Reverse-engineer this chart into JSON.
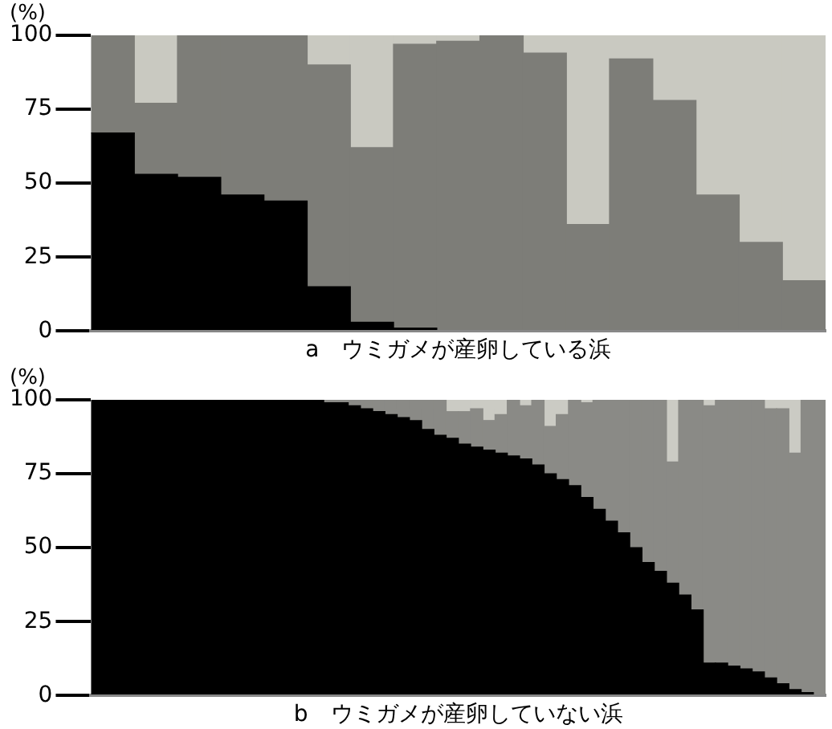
{
  "chart_data": [
    {
      "type": "bar",
      "stacked": true,
      "ylabel": "(%)",
      "xlabel": "a　ウミガメが産卵している浜",
      "legend": false,
      "grid": false,
      "tick_labels": "y",
      "ylim": [
        0,
        100
      ],
      "yticks": [
        0,
        25,
        50,
        75,
        100
      ],
      "categories": [
        null,
        null,
        null,
        null,
        null,
        null,
        null,
        null,
        null,
        null,
        null,
        null,
        null,
        null,
        null,
        null,
        null
      ],
      "series": [
        {
          "color": "#000000",
          "values": [
            67,
            53,
            52,
            46,
            44,
            15,
            3,
            1,
            0,
            0,
            0,
            0,
            0,
            0,
            0,
            0,
            0
          ]
        },
        {
          "color": "#7d7d78",
          "values": [
            33,
            24,
            48,
            54,
            56,
            75,
            59,
            96,
            98,
            100,
            94,
            36,
            92,
            78,
            46,
            30,
            17
          ]
        },
        {
          "color": "#c9c9c1",
          "values": [
            0,
            23,
            0,
            0,
            0,
            10,
            38,
            3,
            2,
            0,
            6,
            64,
            8,
            22,
            54,
            70,
            83
          ]
        }
      ]
    },
    {
      "type": "bar",
      "stacked": true,
      "ylabel": "(%)",
      "xlabel": "b　ウミガメが産卵していない浜",
      "legend": false,
      "grid": false,
      "tick_labels": "y",
      "ylim": [
        0,
        100
      ],
      "yticks": [
        0,
        25,
        50,
        75,
        100
      ],
      "categories": [
        null,
        null,
        null,
        null,
        null,
        null,
        null,
        null,
        null,
        null,
        null,
        null,
        null,
        null,
        null,
        null,
        null,
        null,
        null,
        null,
        null,
        null,
        null,
        null,
        null,
        null,
        null,
        null,
        null,
        null,
        null,
        null,
        null,
        null,
        null,
        null,
        null,
        null,
        null,
        null,
        null,
        null,
        null,
        null,
        null,
        null,
        null,
        null,
        null,
        null,
        null,
        null,
        null,
        null,
        null,
        null,
        null,
        null,
        null,
        null
      ],
      "series": [
        {
          "color": "#000000",
          "values": [
            100,
            100,
            100,
            100,
            100,
            100,
            100,
            100,
            100,
            100,
            100,
            100,
            100,
            100,
            100,
            100,
            100,
            100,
            100,
            99,
            99,
            98,
            97,
            96,
            95,
            94,
            93,
            90,
            88,
            87,
            85,
            84,
            83,
            82,
            81,
            80,
            78,
            75,
            73,
            71,
            67,
            63,
            59,
            55,
            50,
            45,
            42,
            38,
            34,
            29,
            11,
            11,
            10,
            9,
            8,
            6,
            4,
            2,
            1,
            0
          ]
        },
        {
          "color": "#8a8a86",
          "values": [
            0,
            0,
            0,
            0,
            0,
            0,
            0,
            0,
            0,
            0,
            0,
            0,
            0,
            0,
            0,
            0,
            0,
            0,
            0,
            1,
            1,
            2,
            3,
            4,
            5,
            6,
            7,
            10,
            12,
            9,
            11,
            13,
            10,
            13,
            19,
            18,
            22,
            16,
            22,
            29,
            32,
            37,
            41,
            45,
            50,
            55,
            58,
            41,
            66,
            71,
            87,
            89,
            90,
            91,
            92,
            91,
            93,
            80,
            99,
            100
          ]
        },
        {
          "color": "#cbcbc4",
          "values": [
            0,
            0,
            0,
            0,
            0,
            0,
            0,
            0,
            0,
            0,
            0,
            0,
            0,
            0,
            0,
            0,
            0,
            0,
            0,
            0,
            0,
            0,
            0,
            0,
            0,
            0,
            0,
            0,
            0,
            4,
            4,
            3,
            7,
            5,
            0,
            2,
            0,
            9,
            5,
            0,
            1,
            0,
            0,
            0,
            0,
            0,
            0,
            21,
            0,
            0,
            2,
            0,
            0,
            0,
            0,
            3,
            3,
            18,
            0,
            0
          ]
        }
      ]
    }
  ]
}
